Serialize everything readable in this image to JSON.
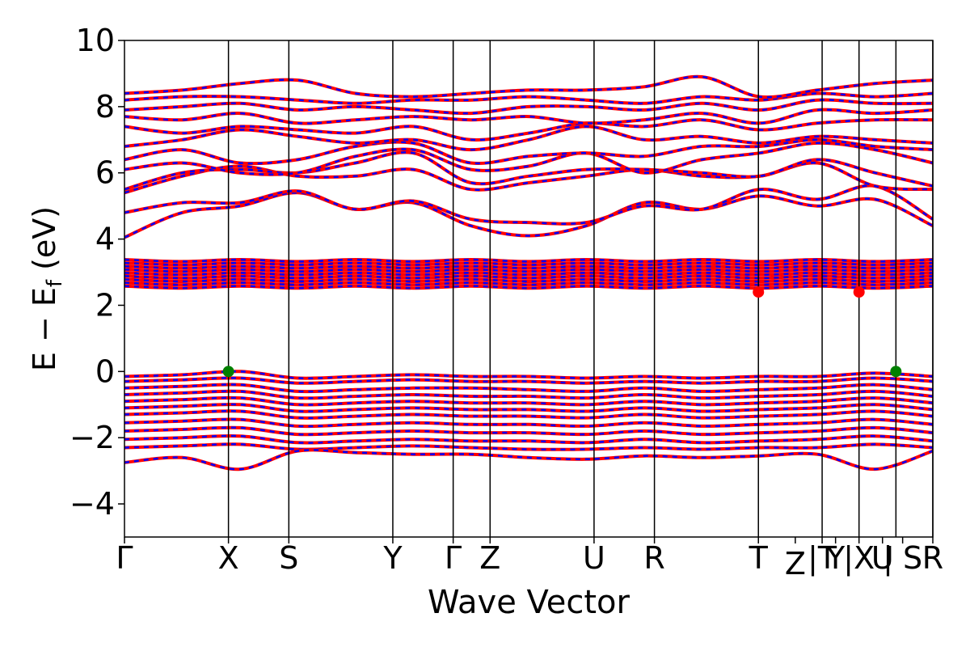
{
  "chart_data": {
    "type": "line",
    "title": "",
    "xlabel": "Wave Vector",
    "ylabel": {
      "main": "E − E",
      "sub": "f",
      "unit": "(eV)"
    },
    "ylim": [
      -5,
      10
    ],
    "yticks": [
      {
        "value": 10,
        "label": "10"
      },
      {
        "value": 8,
        "label": "8"
      },
      {
        "value": 6,
        "label": "6"
      },
      {
        "value": 4,
        "label": "4"
      },
      {
        "value": 2,
        "label": "2"
      },
      {
        "value": 0,
        "label": "0"
      },
      {
        "value": -2,
        "label": "−2"
      },
      {
        "value": -4,
        "label": "−4"
      }
    ],
    "xlim": [
      0,
      12.05
    ],
    "kpoint_labels": [
      {
        "x": 0,
        "label": "Γ"
      },
      {
        "x": 1.55,
        "label": "X"
      },
      {
        "x": 2.45,
        "label": "S"
      },
      {
        "x": 4.0,
        "label": "Y"
      },
      {
        "x": 4.9,
        "label": "Γ"
      },
      {
        "x": 5.45,
        "label": "Z"
      },
      {
        "x": 7.0,
        "label": "U"
      },
      {
        "x": 7.9,
        "label": "R"
      },
      {
        "x": 9.45,
        "label": "T"
      },
      {
        "x": 10.0,
        "label": "Z"
      },
      {
        "x": 10.4,
        "label": "|T"
      },
      {
        "x": 10.6,
        "label": "Y"
      },
      {
        "x": 10.95,
        "label": "|X"
      },
      {
        "x": 11.3,
        "label": "U"
      },
      {
        "x": 11.6,
        "label": "| S"
      },
      {
        "x": 12.05,
        "label": "R"
      }
    ],
    "segment_boundaries": [
      1.55,
      2.45,
      4.0,
      4.9,
      5.45,
      7.0,
      7.9,
      9.45,
      10.4,
      10.95,
      11.5,
      12.05
    ],
    "series_colors": {
      "spin_up": "#ff0000",
      "spin_down": "#0000ff"
    },
    "band_edges": {
      "vbm": [
        {
          "x": 1.55,
          "y": 0.0
        },
        {
          "x": 11.5,
          "y": 0.0
        }
      ],
      "cbm": [
        {
          "x": 9.45,
          "y": 2.4
        },
        {
          "x": 10.95,
          "y": 2.4
        }
      ],
      "vbm_color": "#008000",
      "cbm_color": "#ff0000"
    },
    "bands": {
      "conduction_upper": [
        [
          4.05,
          4.8,
          5.0,
          5.4,
          4.9,
          5.1,
          4.4,
          4.1,
          4.4,
          5.1,
          4.9,
          5.3,
          5.0,
          5.2,
          4.4
        ],
        [
          4.8,
          5.1,
          5.1,
          5.45,
          4.9,
          5.15,
          4.6,
          4.5,
          4.5,
          5.0,
          4.9,
          5.5,
          5.2,
          5.6,
          4.6
        ],
        [
          5.4,
          5.9,
          6.2,
          5.9,
          5.9,
          6.1,
          5.5,
          5.7,
          5.9,
          6.1,
          5.9,
          5.9,
          6.3,
          5.6,
          5.5
        ],
        [
          5.5,
          6.0,
          6.1,
          6.0,
          6.3,
          6.6,
          5.7,
          5.9,
          6.1,
          6.1,
          6.0,
          5.9,
          6.4,
          6.0,
          5.6
        ],
        [
          6.1,
          6.3,
          6.0,
          6.0,
          6.5,
          6.7,
          6.1,
          6.2,
          6.6,
          6.0,
          6.4,
          6.6,
          6.9,
          6.7,
          6.3
        ],
        [
          6.4,
          6.7,
          6.3,
          6.4,
          6.8,
          6.9,
          6.3,
          6.5,
          6.6,
          6.5,
          6.8,
          6.8,
          7.0,
          6.8,
          6.7
        ],
        [
          6.8,
          7.0,
          7.3,
          7.1,
          6.9,
          7.0,
          6.7,
          7.0,
          7.4,
          7.0,
          7.1,
          6.9,
          7.1,
          7.0,
          6.9
        ],
        [
          7.4,
          7.2,
          7.4,
          7.3,
          7.2,
          7.4,
          7.0,
          7.2,
          7.5,
          7.4,
          7.6,
          7.3,
          7.5,
          7.6,
          7.6
        ],
        [
          7.7,
          7.6,
          7.8,
          7.5,
          7.6,
          7.7,
          7.6,
          7.7,
          7.5,
          7.6,
          7.8,
          7.5,
          7.9,
          7.8,
          7.9
        ],
        [
          7.9,
          8.0,
          8.1,
          7.9,
          8.0,
          7.9,
          7.8,
          8.0,
          8.0,
          7.9,
          8.1,
          7.9,
          8.2,
          8.1,
          8.1
        ],
        [
          8.2,
          8.3,
          8.3,
          8.2,
          8.1,
          8.2,
          8.2,
          8.3,
          8.2,
          8.1,
          8.3,
          8.2,
          8.4,
          8.3,
          8.4
        ],
        [
          8.4,
          8.5,
          8.7,
          8.8,
          8.4,
          8.3,
          8.4,
          8.5,
          8.5,
          8.6,
          8.9,
          8.3,
          8.5,
          8.7,
          8.8
        ]
      ],
      "conduction_flat": [
        2.55,
        2.65,
        2.75,
        2.85,
        2.95,
        3.05,
        3.15,
        3.25,
        3.35
      ],
      "valence": [
        [
          -0.15,
          -0.1,
          0.0,
          -0.2,
          -0.15,
          -0.1,
          -0.15,
          -0.15,
          -0.2,
          -0.15,
          -0.2,
          -0.15,
          -0.15,
          -0.05,
          -0.15
        ],
        [
          -0.3,
          -0.25,
          -0.2,
          -0.35,
          -0.3,
          -0.25,
          -0.3,
          -0.3,
          -0.35,
          -0.3,
          -0.35,
          -0.3,
          -0.3,
          -0.2,
          -0.3
        ],
        [
          -0.5,
          -0.45,
          -0.4,
          -0.6,
          -0.55,
          -0.5,
          -0.5,
          -0.55,
          -0.6,
          -0.5,
          -0.6,
          -0.55,
          -0.5,
          -0.4,
          -0.55
        ],
        [
          -0.7,
          -0.65,
          -0.6,
          -0.8,
          -0.75,
          -0.7,
          -0.75,
          -0.75,
          -0.8,
          -0.7,
          -0.8,
          -0.75,
          -0.7,
          -0.6,
          -0.75
        ],
        [
          -0.9,
          -0.85,
          -0.8,
          -1.0,
          -0.95,
          -0.9,
          -0.95,
          -0.95,
          -1.0,
          -0.9,
          -1.0,
          -0.95,
          -0.9,
          -0.8,
          -0.95
        ],
        [
          -1.1,
          -1.05,
          -1.0,
          -1.2,
          -1.15,
          -1.1,
          -1.15,
          -1.15,
          -1.2,
          -1.1,
          -1.2,
          -1.15,
          -1.1,
          -1.0,
          -1.15
        ],
        [
          -1.3,
          -1.25,
          -1.2,
          -1.4,
          -1.35,
          -1.3,
          -1.35,
          -1.35,
          -1.4,
          -1.3,
          -1.4,
          -1.35,
          -1.3,
          -1.2,
          -1.35
        ],
        [
          -1.55,
          -1.5,
          -1.45,
          -1.65,
          -1.6,
          -1.55,
          -1.6,
          -1.6,
          -1.65,
          -1.55,
          -1.65,
          -1.6,
          -1.55,
          -1.45,
          -1.6
        ],
        [
          -1.8,
          -1.75,
          -1.7,
          -1.9,
          -1.85,
          -1.8,
          -1.85,
          -1.85,
          -1.9,
          -1.8,
          -1.9,
          -1.85,
          -1.8,
          -1.7,
          -1.85
        ],
        [
          -2.05,
          -2.0,
          -1.95,
          -2.15,
          -2.1,
          -2.05,
          -2.1,
          -2.1,
          -2.15,
          -2.05,
          -2.15,
          -2.1,
          -2.05,
          -1.95,
          -2.1
        ],
        [
          -2.3,
          -2.25,
          -2.2,
          -2.35,
          -2.3,
          -2.25,
          -2.3,
          -2.35,
          -2.35,
          -2.3,
          -2.35,
          -2.3,
          -2.3,
          -2.2,
          -2.3
        ],
        [
          -2.75,
          -2.6,
          -2.95,
          -2.4,
          -2.45,
          -2.5,
          -2.5,
          -2.6,
          -2.65,
          -2.55,
          -2.6,
          -2.55,
          -2.5,
          -2.95,
          -2.4
        ]
      ]
    }
  }
}
